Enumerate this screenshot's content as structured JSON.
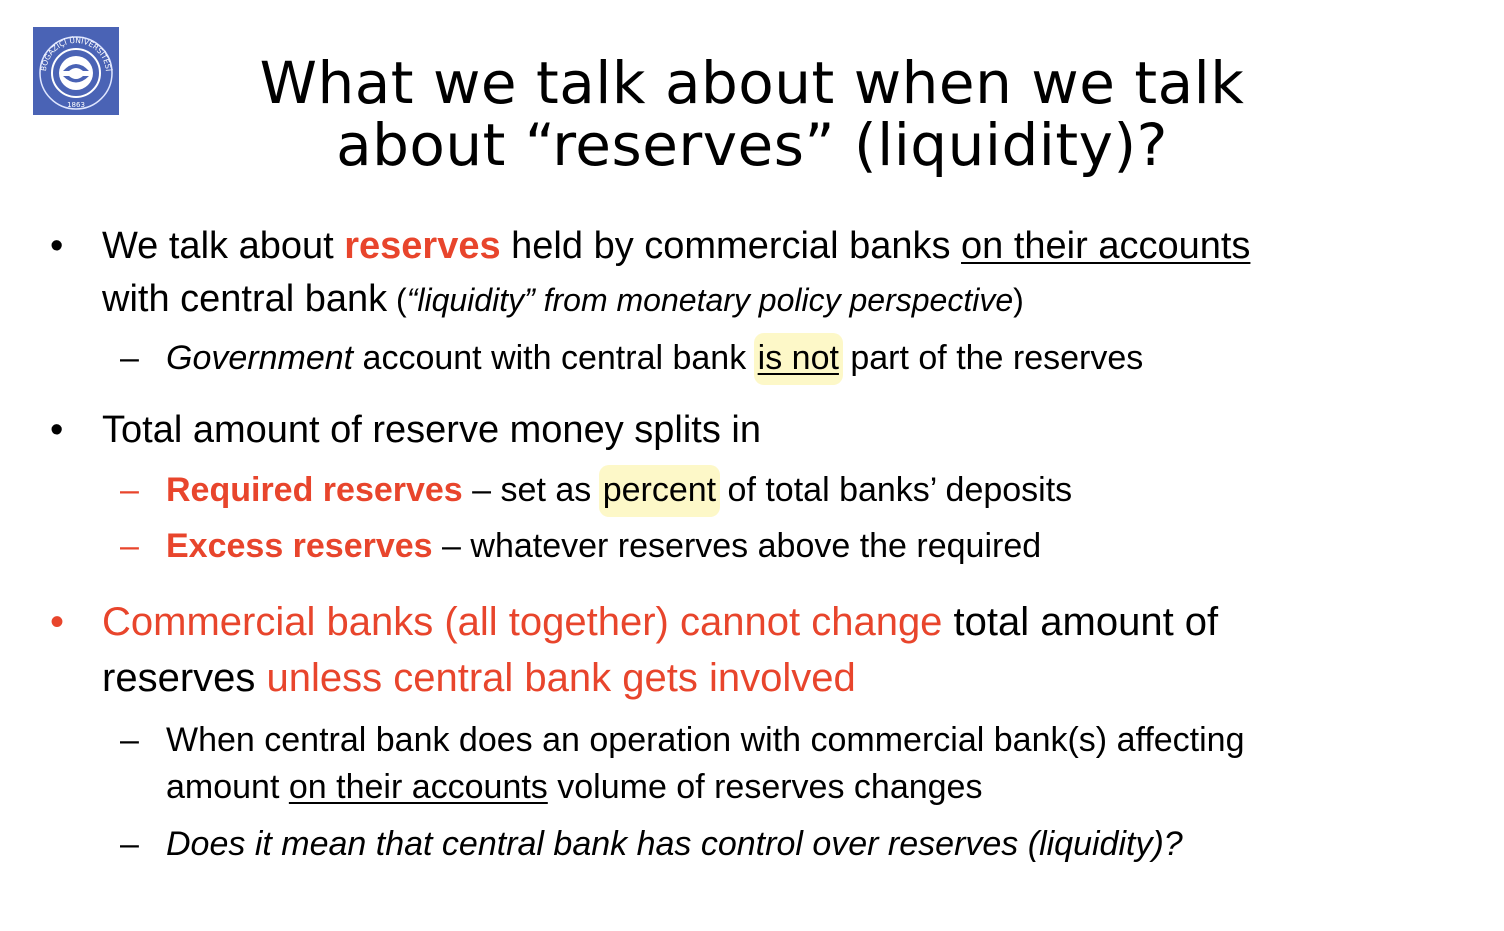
{
  "logo": {
    "text": "BOĞAZİÇİ ÜNİVERSİTESİ",
    "year": "1863",
    "bg": "#4a63b5"
  },
  "title": {
    "line1": "What we talk about when we talk",
    "line2": "about “reserves” (liquidity)?"
  },
  "bullets": {
    "b1": {
      "t1": "We talk about ",
      "t2": "reserves",
      "t3": " held by commercial banks ",
      "t4": "on their accounts",
      "t5": "with central bank",
      "t6": " (",
      "t7": "“liquidity” from monetary policy perspective",
      "t8": ")"
    },
    "s1": {
      "t1": "Government",
      "t2": " account with central bank ",
      "t3": "is not",
      "t4": " part of the reserves"
    },
    "b2": {
      "t1": "Total amount of reserve money splits in"
    },
    "s2": {
      "t1": "Required reserves",
      "t2": " – set as ",
      "t3": "percent",
      "t4": " of total banks’ deposits"
    },
    "s3": {
      "t1": "Excess reserves",
      "t2": " – whatever reserves above the required"
    },
    "b3": {
      "t1": "Commercial banks (all together) cannot change",
      "t2": " total amount of",
      "t3": "reserves ",
      "t4": "unless central bank gets involved"
    },
    "s4": {
      "t1": "When central bank does an operation with commercial bank(s) affecting",
      "t2": "amount ",
      "t3": "on their accounts",
      "t4": " volume of reserves changes"
    },
    "s5": {
      "t1": "Does it mean that central bank has control over reserves (liquidity)?"
    }
  },
  "symbols": {
    "bullet": "•",
    "dash": "–"
  },
  "colors": {
    "accent": "#e8452c",
    "highlight": "#fdf8c8"
  }
}
